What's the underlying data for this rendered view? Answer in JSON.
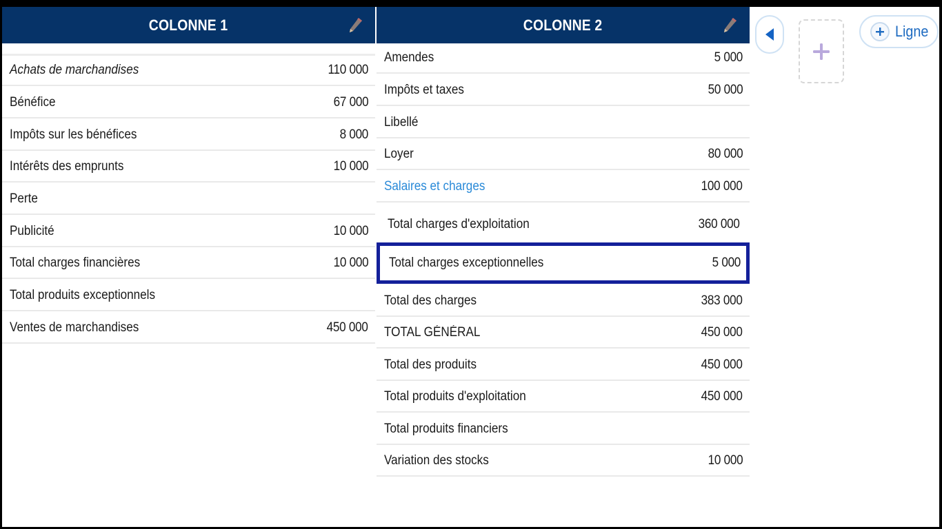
{
  "column1": {
    "title": "COLONNE 1",
    "rows": [
      {
        "label": "Achats de marchandises",
        "value": "110 000"
      },
      {
        "label": "Bénéfice",
        "value": "67 000"
      },
      {
        "label": "Impôts sur les bénéfices",
        "value": "8 000"
      },
      {
        "label": "Intérêts des emprunts",
        "value": "10 000"
      },
      {
        "label": "Perte",
        "value": ""
      },
      {
        "label": "Publicité",
        "value": "10 000"
      },
      {
        "label": "Total charges financières",
        "value": "10 000"
      },
      {
        "label": "Total produits exceptionnels",
        "value": ""
      },
      {
        "label": "Ventes de marchandises",
        "value": "450 000"
      }
    ]
  },
  "column2": {
    "title": "COLONNE 2",
    "rows": [
      {
        "label": "Amendes",
        "value": "5 000"
      },
      {
        "label": "Impôts et taxes",
        "value": "50 000"
      },
      {
        "label": "Libellé",
        "value": ""
      },
      {
        "label": "Loyer",
        "value": "80 000"
      },
      {
        "label": "Salaires et charges",
        "value": "100 000"
      },
      {
        "label": "Total charges d'exploitation",
        "value": "360 000"
      },
      {
        "label": "Total charges exceptionnelles",
        "value": "5 000"
      },
      {
        "label": "Total des charges",
        "value": "383 000"
      },
      {
        "label": "TOTAL GÉNÉRAL",
        "value": "450 000"
      },
      {
        "label": "Total des produits",
        "value": "450 000"
      },
      {
        "label": "Total produits d'exploitation",
        "value": "450 000"
      },
      {
        "label": "Total produits financiers",
        "value": ""
      },
      {
        "label": "Variation des stocks",
        "value": "10 000"
      }
    ]
  },
  "controls": {
    "back_icon": "left-triangle-icon",
    "add_column_icon": "plus-icon",
    "add_line_label": "Ligne"
  },
  "colors": {
    "header_bg": "#063368",
    "selection_border": "#14209a",
    "link_text": "#2a8ad8",
    "button_text": "#1e6bc1"
  }
}
